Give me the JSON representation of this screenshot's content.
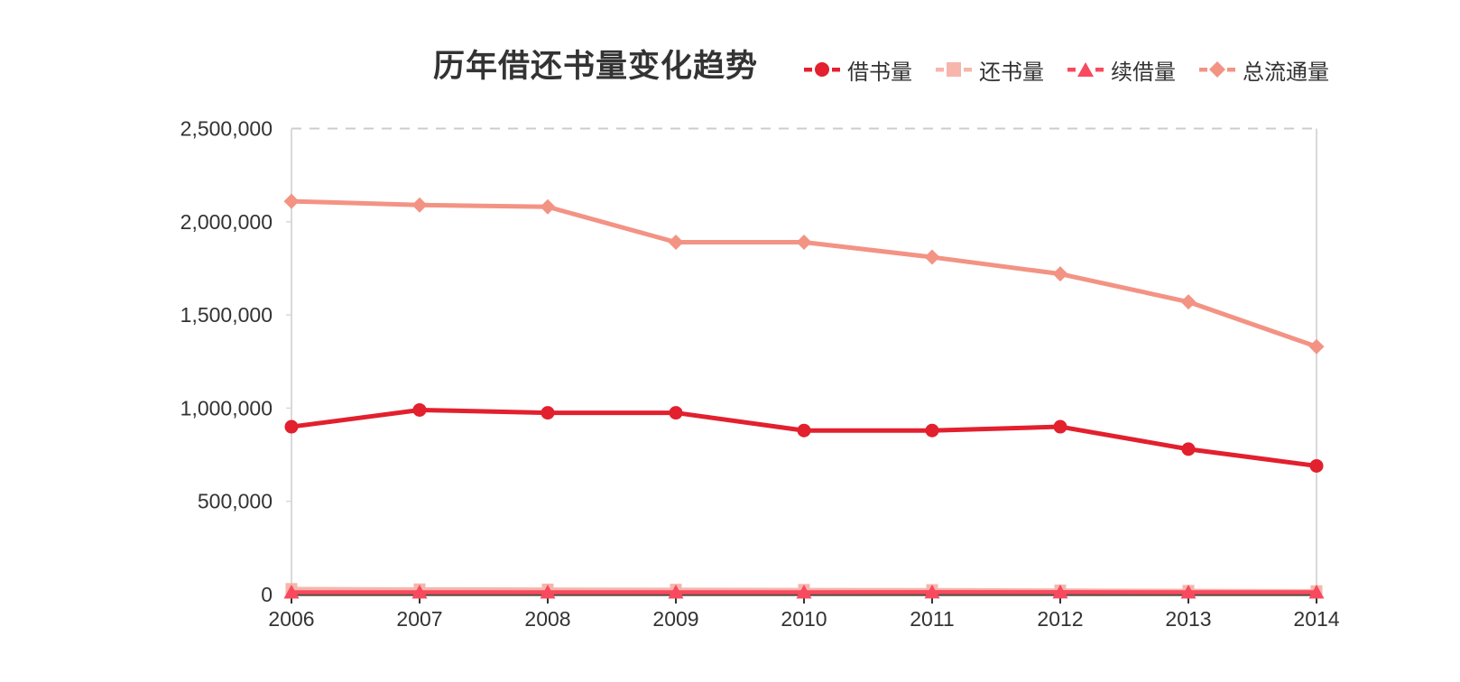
{
  "title": "历年借还书量变化趋势",
  "legend": {
    "items": [
      {
        "key": "jieshuliang",
        "label": "借书量",
        "marker": "circle",
        "color": "#e2202e"
      },
      {
        "key": "huanshuliang",
        "label": "还书量",
        "marker": "square",
        "color": "#f6b6ac"
      },
      {
        "key": "xujieliang",
        "label": "续借量",
        "marker": "triangle",
        "color": "#f8495e"
      },
      {
        "key": "zongliutongliang",
        "label": "总流通量",
        "marker": "diamond",
        "color": "#f39384"
      }
    ]
  },
  "colors": {
    "accent_red": "#e2202e",
    "light_pink": "#f6b6ac",
    "pink": "#f8495e",
    "salmon": "#f39384",
    "x_axis_line": "#585043",
    "side_axis_line": "#d9d9d9",
    "grid_dashed": "#cccccc",
    "tick": "#333333",
    "label_text": "#333333"
  },
  "chart_data": {
    "type": "line",
    "title": "历年借还书量变化趋势",
    "categories": [
      "2006",
      "2007",
      "2008",
      "2009",
      "2010",
      "2011",
      "2012",
      "2013",
      "2014"
    ],
    "series": [
      {
        "key": "jieshuliang",
        "name": "借书量",
        "marker": "circle",
        "color": "#e2202e",
        "values": [
          900000,
          990000,
          975000,
          975000,
          880000,
          880000,
          900000,
          780000,
          690000
        ]
      },
      {
        "key": "huanshuliang",
        "name": "还书量",
        "marker": "square",
        "color": "#f6b6ac",
        "values": [
          30000,
          28000,
          27000,
          26000,
          25000,
          24000,
          22000,
          20000,
          18000
        ]
      },
      {
        "key": "xujieliang",
        "name": "续借量",
        "marker": "triangle",
        "color": "#f8495e",
        "values": [
          12000,
          12000,
          12000,
          12000,
          12000,
          13000,
          13000,
          12000,
          12000
        ]
      },
      {
        "key": "zongliutongliang",
        "name": "总流通量",
        "marker": "diamond",
        "color": "#f39384",
        "values": [
          2110000,
          2090000,
          2080000,
          1890000,
          1890000,
          1810000,
          1720000,
          1570000,
          1330000
        ]
      }
    ],
    "xlabel": "",
    "ylabel": "",
    "ylim": [
      0,
      2500000
    ],
    "ytick_step": 500000,
    "ytick_labels": [
      "0",
      "500,000",
      "1,000,000",
      "1,500,000",
      "2,000,000",
      "2,500,000"
    ],
    "grid": "single dashed horizontal gridline at 2,500,000 only",
    "legend_position": "top-right"
  }
}
